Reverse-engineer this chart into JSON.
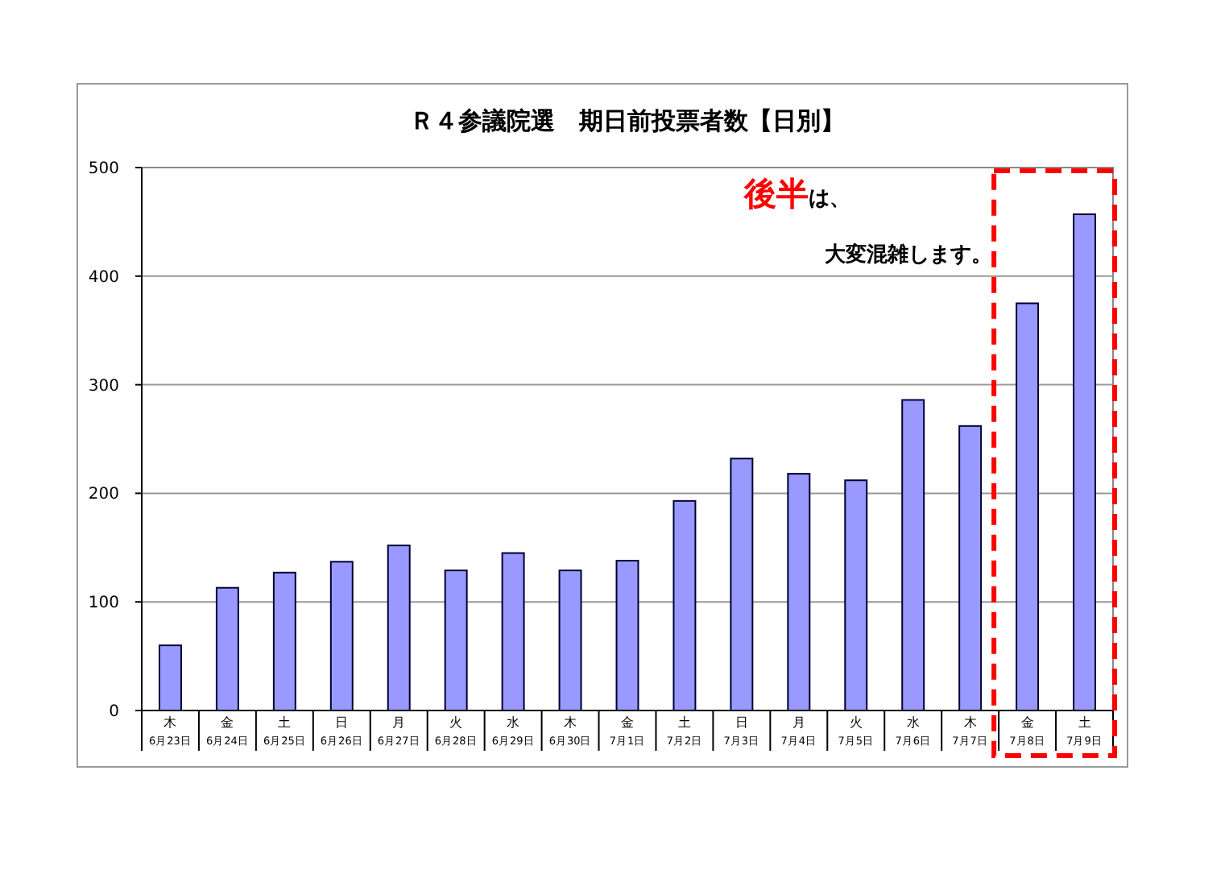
{
  "chart_data": {
    "type": "bar",
    "title": "Ｒ４参議院選　期日前投票者数【日別】",
    "categories": [
      "木 6月23日",
      "金 6月24日",
      "土 6月25日",
      "日 6月26日",
      "月 6月27日",
      "火 6月28日",
      "水 6月29日",
      "木 6月30日",
      "金 7月1日",
      "土 7月2日",
      "日 7月3日",
      "月 7月4日",
      "火 7月5日",
      "水 7月6日",
      "木 7月7日",
      "金 7月8日",
      "土 7月9日"
    ],
    "values": [
      60,
      113,
      127,
      137,
      152,
      129,
      145,
      129,
      138,
      193,
      232,
      218,
      212,
      286,
      262,
      375,
      457
    ],
    "color": "#9999ff",
    "ylim": [
      0,
      500
    ],
    "yticks": [
      0,
      100,
      200,
      300,
      400,
      500
    ],
    "grid": "y",
    "annotations": [
      "後半",
      "は、",
      "大変混雑します。"
    ]
  }
}
